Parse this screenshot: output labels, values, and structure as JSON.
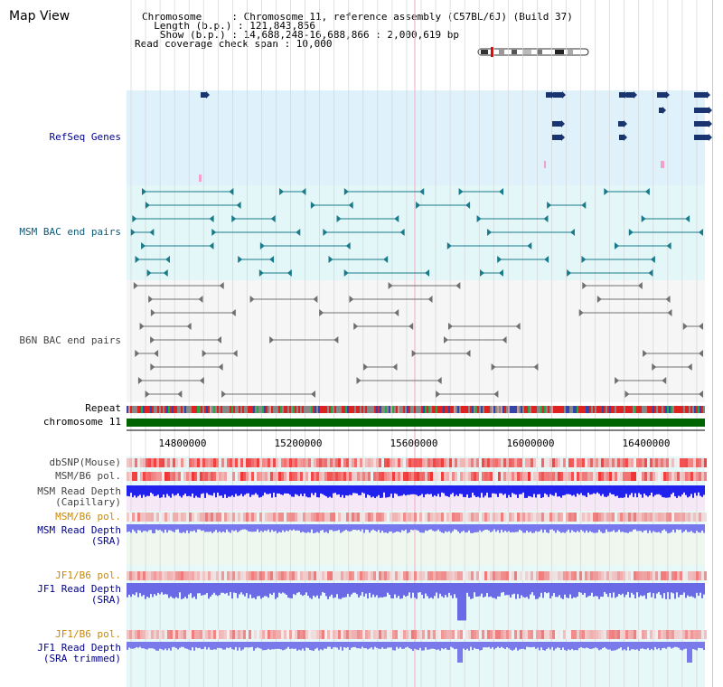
{
  "title": "Map View",
  "header": {
    "chromosome": "Chromosome     : Chromosome 11, reference assembly (C57BL/6J) (Build 37)",
    "length": "  Length (b.p.) : 121,843,856",
    "show": "   Show (b.p.) : 14,688,248-16,688,866 : 2,000,619 bp",
    "coverage": "Read coverage check span : 10,000"
  },
  "tracks": {
    "refseq": "RefSeq Genes",
    "msm_bac": "MSM BAC end pairs",
    "b6n_bac": "B6N BAC end pairs",
    "repeat": "Repeat",
    "chromosome": "chromosome 11",
    "dbsnp": "dbSNP(Mouse)",
    "msm_b6_pol_1": "MSM/B6 pol.",
    "msm_depth_cap_1": "MSM Read Depth",
    "msm_depth_cap_2": "(Capillary)",
    "msm_b6_pol_2": "MSM/B6 pol.",
    "msm_depth_sra_1": "MSM Read Depth",
    "msm_depth_sra_2": "(SRA)",
    "jf1_b6_pol_1": "JF1/B6 pol.",
    "jf1_depth_sra_1": "JF1 Read Depth",
    "jf1_depth_sra_2": "(SRA)",
    "jf1_b6_pol_2": "JF1/B6 pol.",
    "jf1_depth_trim_1": "JF1 Read Depth",
    "jf1_depth_trim_2": "(SRA trimmed)"
  },
  "axis": {
    "ticks": [
      "14800000",
      "15200000",
      "15600000",
      "16000000",
      "16400000"
    ]
  },
  "colors": {
    "refseq_bg": "#dff1fb",
    "msm_bg": "#e3f7f8",
    "b6n_bg": "#f6f6f6",
    "gene_navy": "#1a3470",
    "msm_feature": "#1a7a8a",
    "b6n_feature": "#707070",
    "chromosome_bar": "#006400",
    "depth_blue": "#2222ee",
    "depth_light": "#7777ee"
  }
}
